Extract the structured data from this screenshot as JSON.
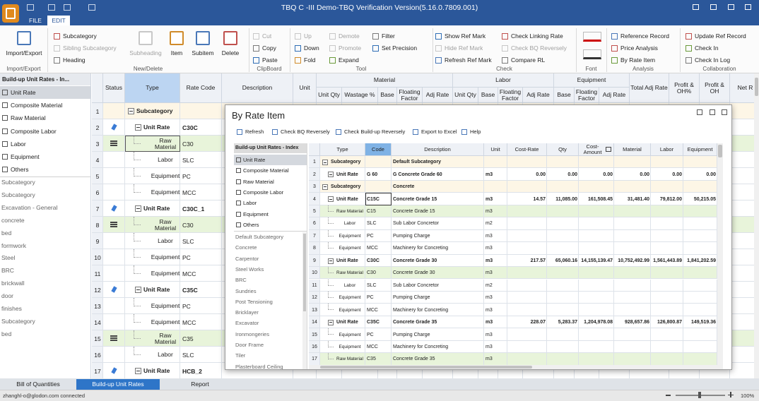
{
  "window": {
    "title": "TBQ C -III Demo-TBQ Verification Version(5.16.0.7809.001)",
    "tabs": [
      "FILE",
      "EDIT"
    ],
    "active_tab": 1
  },
  "ribbon": {
    "groups": [
      {
        "label": "Import/Export",
        "buttons": [
          {
            "label": "Import/Export"
          }
        ]
      },
      {
        "label": "New/Delete",
        "buttons": [
          {
            "label": "Subcategory"
          },
          {
            "label": "Sibling Subcategory",
            "disabled": true
          },
          {
            "label": "Heading"
          },
          {
            "label": "Subheading",
            "disabled": true
          },
          {
            "label": "Item"
          },
          {
            "label": "Subitem"
          },
          {
            "label": "Delete"
          }
        ]
      },
      {
        "label": "ClipBoard",
        "buttons": [
          {
            "label": "Cut",
            "disabled": true
          },
          {
            "label": "Copy"
          },
          {
            "label": "Paste"
          }
        ]
      },
      {
        "label": "Tool",
        "buttons": [
          {
            "label": "Up",
            "disabled": true
          },
          {
            "label": "Down"
          },
          {
            "label": "Fold"
          },
          {
            "label": "Demote",
            "disabled": true
          },
          {
            "label": "Promote",
            "disabled": true
          },
          {
            "label": "Expand"
          },
          {
            "label": "Filter"
          },
          {
            "label": "Set Precision"
          }
        ]
      },
      {
        "label": "Check",
        "buttons": [
          {
            "label": "Show Ref Mark"
          },
          {
            "label": "Hide Ref Mark",
            "disabled": true
          },
          {
            "label": "Refresh Ref Mark"
          },
          {
            "label": "Check Linking Rate"
          },
          {
            "label": "Check BQ Reversely",
            "disabled": true
          },
          {
            "label": "Compare RL"
          }
        ]
      },
      {
        "label": "Font",
        "buttons": []
      },
      {
        "label": "Analysis",
        "buttons": [
          {
            "label": "Reference Record"
          },
          {
            "label": "Price Analysis"
          },
          {
            "label": "By Rate Item"
          }
        ]
      },
      {
        "label": "Collaboration",
        "buttons": [
          {
            "label": "Update Ref Record"
          },
          {
            "label": "Check In"
          },
          {
            "label": "Check In Log"
          }
        ]
      }
    ]
  },
  "left_panel": {
    "title": "Build-up Unit Rates - In...",
    "items": [
      "Unit Rate",
      "Composite Material",
      "Raw Material",
      "Composite Labor",
      "Labor",
      "Equipment",
      "Others"
    ],
    "selected": 0,
    "list": [
      "Subcategory",
      "Subcategory",
      "Excavation - General",
      "concrete",
      "bed",
      "formwork",
      "Steel",
      "BRC",
      "brickwall",
      "door",
      "finishes",
      "Subcategory",
      "bed"
    ]
  },
  "main_grid": {
    "columns": [
      "Status",
      "Type",
      "Rate Code",
      "Description",
      "Unit"
    ],
    "groups": [
      {
        "name": "Material",
        "columns": [
          "Unit Qty",
          "Wastage %",
          "Base",
          "Floating Factor",
          "Adj Rate"
        ]
      },
      {
        "name": "Labor",
        "columns": [
          "Unit Qty",
          "Base",
          "Floating Factor",
          "Adj Rate"
        ]
      },
      {
        "name": "Equipment",
        "columns": [
          "Base",
          "Floating Factor",
          "Adj Rate"
        ]
      }
    ],
    "tail_columns": [
      "Total Adj Rate",
      "Profit & OH%",
      "Profit & OH",
      "Net R"
    ],
    "rows": [
      {
        "n": "1",
        "type": "Subcategory",
        "level": 0,
        "color": "#fdf6e6"
      },
      {
        "n": "2",
        "type": "Unit Rate",
        "code": "C30C",
        "net": "2",
        "level": 1,
        "status": "pin"
      },
      {
        "n": "3",
        "type": "Raw Material",
        "code": "C30",
        "net": "1",
        "level": 2,
        "status": "list",
        "color": "#e8f4da",
        "selected": true
      },
      {
        "n": "4",
        "type": "Labor",
        "code": "SLC",
        "level": 2
      },
      {
        "n": "5",
        "type": "Equipment",
        "code": "PC",
        "level": 2
      },
      {
        "n": "6",
        "type": "Equipment",
        "code": "MCC",
        "level": 2
      },
      {
        "n": "7",
        "type": "Unit Rate",
        "code": "C30C_1",
        "net": "2",
        "level": 1,
        "status": "pin"
      },
      {
        "n": "8",
        "type": "Raw Material",
        "code": "C30",
        "net": "1",
        "level": 2,
        "status": "list",
        "color": "#e8f4da"
      },
      {
        "n": "9",
        "type": "Labor",
        "code": "SLC",
        "level": 2
      },
      {
        "n": "10",
        "type": "Equipment",
        "code": "PC",
        "level": 2
      },
      {
        "n": "11",
        "type": "Equipment",
        "code": "MCC",
        "level": 2
      },
      {
        "n": "12",
        "type": "Unit Rate",
        "code": "C35C",
        "net": "2",
        "level": 1,
        "status": "pin"
      },
      {
        "n": "13",
        "type": "Equipment",
        "code": "PC",
        "level": 2
      },
      {
        "n": "14",
        "type": "Equipment",
        "code": "MCC",
        "level": 2
      },
      {
        "n": "15",
        "type": "Raw Material",
        "code": "C35",
        "net": "1",
        "level": 2,
        "status": "list",
        "color": "#e8f4da"
      },
      {
        "n": "16",
        "type": "Labor",
        "code": "SLC",
        "level": 2
      },
      {
        "n": "17",
        "type": "Unit Rate",
        "code": "HCB_2",
        "level": 1,
        "status": "pin"
      }
    ]
  },
  "dialog": {
    "title": "By Rate Item",
    "toolbar": [
      "Refresh",
      "Check BQ Reversely",
      "Check Build-up Reversely",
      "Export to Excel",
      "Help"
    ],
    "index_title": "Build-up Unit Rates - Index",
    "items": [
      "Unit Rate",
      "Composite Material",
      "Raw Material",
      "Composite Labor",
      "Labor",
      "Equipment",
      "Others"
    ],
    "selected": 0,
    "list": [
      "Default Subcategory",
      "Concrete",
      "Carpentor",
      "Steel Works",
      "BRC",
      "Sundries",
      "Post Tensioning",
      "Bricklayer",
      "Excavator",
      "Ironmongeries",
      "Door Frame",
      "Tiler",
      "Plasterboard Ceiling"
    ],
    "columns": [
      "Type",
      "Code",
      "Description",
      "Unit",
      "Cost-Rate",
      "Qty",
      "Cost-Amount",
      "Material",
      "Labor",
      "Equipment"
    ],
    "rows": [
      {
        "n": "1",
        "type": "Subcategory",
        "desc": "Default Subcategory",
        "level": 0,
        "color": "#fdf6e6"
      },
      {
        "n": "2",
        "type": "Unit Rate",
        "code": "G 60",
        "desc": "G Concrete Grade 60",
        "unit": "m3",
        "rate": "0.00",
        "qty": "0.00",
        "amount": "0.00",
        "mat": "0.00",
        "lab": "0.00",
        "eq": "0.00",
        "level": 1
      },
      {
        "n": "3",
        "type": "Subcategory",
        "desc": "Concrete",
        "level": 0,
        "color": "#fdf6e6"
      },
      {
        "n": "4",
        "type": "Unit Rate",
        "code": "C15C",
        "desc": "Concrete Grade 15",
        "unit": "m3",
        "rate": "14.57",
        "qty": "11,085.00",
        "amount": "161,508.45",
        "mat": "31,481.40",
        "lab": "79,812.00",
        "eq": "50,215.05",
        "level": 1,
        "selected": true
      },
      {
        "n": "5",
        "type": "Raw Material",
        "code": "C15",
        "desc": "Concrete Grade 15",
        "unit": "m3",
        "level": 2,
        "color": "#e8f4da"
      },
      {
        "n": "6",
        "type": "Labor",
        "code": "SLC",
        "desc": "Sub Labor Concretor",
        "unit": "m2",
        "level": 2
      },
      {
        "n": "7",
        "type": "Equipment",
        "code": "PC",
        "desc": "Pumping Charge",
        "unit": "m3",
        "level": 2
      },
      {
        "n": "8",
        "type": "Equipment",
        "code": "MCC",
        "desc": "Machinery for Concreting",
        "unit": "m3",
        "level": 2
      },
      {
        "n": "9",
        "type": "Unit Rate",
        "code": "C30C",
        "desc": "Concrete Grade 30",
        "unit": "m3",
        "rate": "217.57",
        "qty": "65,060.16",
        "amount": "14,155,139.47",
        "mat": "10,752,492.99",
        "lab": "1,561,443.89",
        "eq": "1,841,202.59",
        "level": 1
      },
      {
        "n": "10",
        "type": "Raw Material",
        "code": "C30",
        "desc": "Concrete Grade 30",
        "unit": "m3",
        "level": 2,
        "color": "#e8f4da"
      },
      {
        "n": "11",
        "type": "Labor",
        "code": "SLC",
        "desc": "Sub Labor Concretor",
        "unit": "m2",
        "level": 2
      },
      {
        "n": "12",
        "type": "Equipment",
        "code": "PC",
        "desc": "Pumping Charge",
        "unit": "m3",
        "level": 2
      },
      {
        "n": "13",
        "type": "Equipment",
        "code": "MCC",
        "desc": "Machinery for Concreting",
        "unit": "m3",
        "level": 2
      },
      {
        "n": "14",
        "type": "Unit Rate",
        "code": "C35C",
        "desc": "Concrete Grade 35",
        "unit": "m3",
        "rate": "228.07",
        "qty": "5,283.37",
        "amount": "1,204,978.08",
        "mat": "928,657.86",
        "lab": "126,800.87",
        "eq": "149,519.36",
        "level": 1
      },
      {
        "n": "15",
        "type": "Equipment",
        "code": "PC",
        "desc": "Pumping Charge",
        "unit": "m3",
        "level": 2
      },
      {
        "n": "16",
        "type": "Equipment",
        "code": "MCC",
        "desc": "Machinery for Concreting",
        "unit": "m3",
        "level": 2
      },
      {
        "n": "17",
        "type": "Raw Material",
        "code": "C35",
        "desc": "Concrete Grade 35",
        "unit": "m3",
        "level": 2,
        "color": "#e8f4da"
      }
    ]
  },
  "bottom_tabs": [
    "Bill of Quantities",
    "Build-up Unit Rates",
    "Report"
  ],
  "active_bottom_tab": 1,
  "status_bar": {
    "user": "zhanghl-o@glodon.com connected",
    "zoom": "100%"
  }
}
